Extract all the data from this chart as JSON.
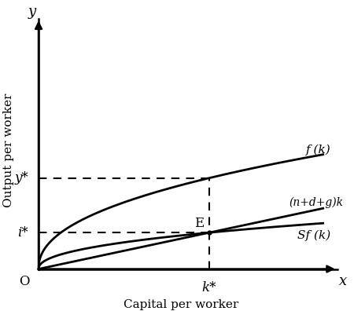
{
  "xlabel": "Capital per worker",
  "ylabel": "Output per worker",
  "x_axis_label": "x",
  "y_axis_label": "y",
  "origin_label": "O",
  "k_star_label": "k*",
  "y_star_label": "y*",
  "i_star_label": "i*",
  "E_label": "E",
  "f_label": "f (k)",
  "ndg_label": "(n+d+g)k",
  "sf_label": "Sf (k)",
  "line_color": "#000000",
  "background_color": "#ffffff",
  "linewidth": 2.0,
  "dashed_linewidth": 1.5,
  "s": 0.4,
  "n_d_g": 0.28,
  "alpha": 0.45,
  "x_max": 5.0,
  "y_max": 3.8
}
